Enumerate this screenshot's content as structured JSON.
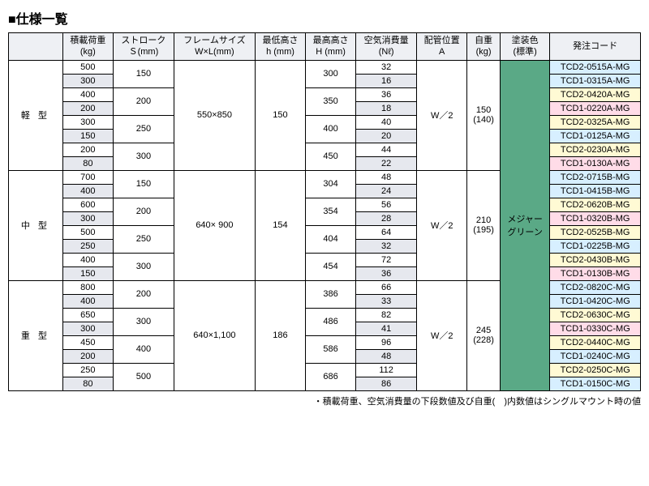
{
  "title": "■仕様一覧",
  "headers": {
    "c0": "",
    "c1": "積載荷重\n(kg)",
    "c2": "ストローク\nＳ(mm)",
    "c3": "フレームサイズ\nW×L(mm)",
    "c4": "最低高さ\nh (mm)",
    "c5": "最高高さ\nH (mm)",
    "c6": "空気消費量\n(Nℓ)",
    "c7": "配管位置\nA",
    "c8": "自重\n(kg)",
    "c9": "塗装色\n(標準)",
    "c10": "発注コード"
  },
  "types": {
    "light": "軽型",
    "mid": "中型",
    "heavy": "重型"
  },
  "strokes": {
    "l1": "150",
    "l2": "200",
    "l3": "250",
    "l4": "300",
    "m1": "150",
    "m2": "200",
    "m3": "250",
    "m4": "300",
    "h1": "200",
    "h2": "300",
    "h3": "400",
    "h4": "500"
  },
  "frame": {
    "light": "550×850",
    "mid": "640× 900",
    "heavy": "640×1,100"
  },
  "minH": {
    "light": "150",
    "mid": "154",
    "heavy": "186"
  },
  "maxH": {
    "l1": "300",
    "l2": "350",
    "l3": "400",
    "l4": "450",
    "m1": "304",
    "m2": "354",
    "m3": "404",
    "m4": "454",
    "h1": "386",
    "h2": "486",
    "h3": "586",
    "h4": "686"
  },
  "pipe": {
    "light": "W／2",
    "mid": "W／2",
    "heavy": "W／2"
  },
  "weight": {
    "light": "150\n(140)",
    "mid": "210\n(195)",
    "heavy": "245\n(228)"
  },
  "paint": "メジャー\nグリーン",
  "r": {
    "l1a": {
      "load": "500",
      "air": "32",
      "code": "TCD2-0515A-MG"
    },
    "l1b": {
      "load": "300",
      "air": "16",
      "code": "TCD1-0315A-MG"
    },
    "l2a": {
      "load": "400",
      "air": "36",
      "code": "TCD2-0420A-MG"
    },
    "l2b": {
      "load": "200",
      "air": "18",
      "code": "TCD1-0220A-MG"
    },
    "l3a": {
      "load": "300",
      "air": "40",
      "code": "TCD2-0325A-MG"
    },
    "l3b": {
      "load": "150",
      "air": "20",
      "code": "TCD1-0125A-MG"
    },
    "l4a": {
      "load": "200",
      "air": "44",
      "code": "TCD2-0230A-MG"
    },
    "l4b": {
      "load": "80",
      "air": "22",
      "code": "TCD1-0130A-MG"
    },
    "m1a": {
      "load": "700",
      "air": "48",
      "code": "TCD2-0715B-MG"
    },
    "m1b": {
      "load": "400",
      "air": "24",
      "code": "TCD1-0415B-MG"
    },
    "m2a": {
      "load": "600",
      "air": "56",
      "code": "TCD2-0620B-MG"
    },
    "m2b": {
      "load": "300",
      "air": "28",
      "code": "TCD1-0320B-MG"
    },
    "m3a": {
      "load": "500",
      "air": "64",
      "code": "TCD2-0525B-MG"
    },
    "m3b": {
      "load": "250",
      "air": "32",
      "code": "TCD1-0225B-MG"
    },
    "m4a": {
      "load": "400",
      "air": "72",
      "code": "TCD2-0430B-MG"
    },
    "m4b": {
      "load": "150",
      "air": "36",
      "code": "TCD1-0130B-MG"
    },
    "h1a": {
      "load": "800",
      "air": "66",
      "code": "TCD2-0820C-MG"
    },
    "h1b": {
      "load": "400",
      "air": "33",
      "code": "TCD1-0420C-MG"
    },
    "h2a": {
      "load": "650",
      "air": "82",
      "code": "TCD2-0630C-MG"
    },
    "h2b": {
      "load": "300",
      "air": "41",
      "code": "TCD1-0330C-MG"
    },
    "h3a": {
      "load": "450",
      "air": "96",
      "code": "TCD2-0440C-MG"
    },
    "h3b": {
      "load": "200",
      "air": "48",
      "code": "TCD1-0240C-MG"
    },
    "h4a": {
      "load": "250",
      "air": "112",
      "code": "TCD2-0250C-MG"
    },
    "h4b": {
      "load": "80",
      "air": "86",
      "code": "TCD1-0150C-MG"
    }
  },
  "footnote": "・積載荷重、空気消費量の下段数値及び自重(　)内数値はシングルマウント時の値",
  "style": {
    "header_bg": "#eef0f4",
    "alt_bg": "#e6e8ee",
    "code_a": "#d7efff",
    "code_b": "#fffad4",
    "code_c": "#ffdce8",
    "paint_bg": "#5aa986",
    "border": "#000000",
    "font_size": 11
  }
}
